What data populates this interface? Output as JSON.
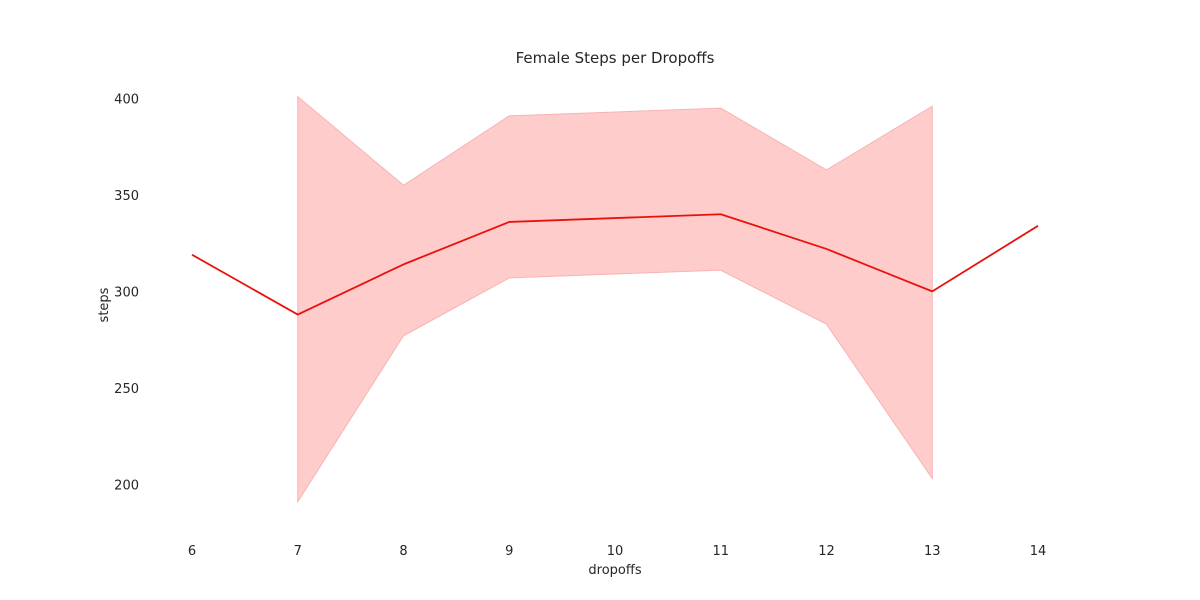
{
  "chart_data": {
    "type": "line",
    "title": "Female Steps per Dropoffs",
    "xlabel": "dropoffs",
    "ylabel": "steps",
    "xlim": [
      6,
      14
    ],
    "ylim": [
      182,
      407
    ],
    "x_ticks": [
      6,
      7,
      8,
      9,
      10,
      11,
      12,
      13,
      14
    ],
    "y_ticks": [
      200,
      250,
      300,
      350,
      400
    ],
    "grid": false,
    "series": [
      {
        "name": "steps",
        "color": "#e8120c",
        "x": [
          6,
          7,
          8,
          9,
          11,
          12,
          13,
          14
        ],
        "values": [
          319,
          288,
          314,
          336,
          340,
          322,
          300,
          334
        ]
      }
    ],
    "confidence_band": {
      "color": "#ffcccc",
      "edge_color": "#f7b3b0",
      "x": [
        7,
        8,
        9,
        11,
        12,
        13
      ],
      "lower": [
        191,
        277,
        307,
        311,
        283,
        203
      ],
      "upper": [
        401,
        355,
        391,
        395,
        363,
        396
      ]
    }
  }
}
